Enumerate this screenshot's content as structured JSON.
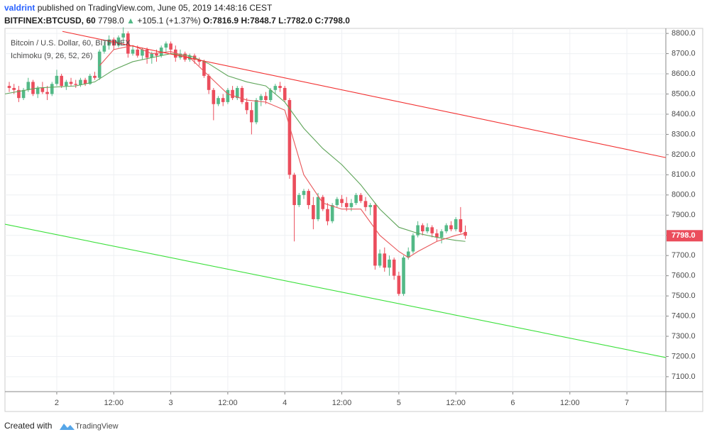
{
  "header": {
    "author": "valdrint",
    "published": "published on TradingView.com, June 05, 2019 14:48:16 CEST",
    "symbol": "BITFINEX:BTCUSD, 60",
    "last": "7798.0",
    "change": "+105.1 (+1.37%)",
    "ohlc": [
      "O:7816.9",
      "H:7848.7",
      "L:7782.0",
      "C:7798.0"
    ]
  },
  "chart_data": {
    "type": "candlestick",
    "legend": [
      "Bitcoin / U.S. Dollar, 60, BITFINEX",
      "Ichimoku (9, 26, 52, 26)"
    ],
    "up_color": "#53b987",
    "down_color": "#eb4d5c",
    "grid": true,
    "xlim": [
      -10.9,
      128.2
    ],
    "ylim": [
      7026,
      8825
    ],
    "xticks": [
      {
        "value": 0,
        "label": "2"
      },
      {
        "value": 12,
        "label": "12:00"
      },
      {
        "value": 24,
        "label": "3"
      },
      {
        "value": 36,
        "label": "12:00"
      },
      {
        "value": 48,
        "label": "4"
      },
      {
        "value": 60,
        "label": "12:00"
      },
      {
        "value": 72,
        "label": "5"
      },
      {
        "value": 84,
        "label": "12:00"
      },
      {
        "value": 96,
        "label": "6"
      },
      {
        "value": 108,
        "label": "12:00"
      },
      {
        "value": 120,
        "label": "7"
      }
    ],
    "yticks": [
      {
        "value": 7100,
        "label": "7100.0"
      },
      {
        "value": 7200,
        "label": "7200.0"
      },
      {
        "value": 7300,
        "label": "7300.0"
      },
      {
        "value": 7400,
        "label": "7400.0"
      },
      {
        "value": 7500,
        "label": "7500.0"
      },
      {
        "value": 7600,
        "label": "7600.0"
      },
      {
        "value": 7700,
        "label": "7700.0"
      },
      {
        "value": 7800,
        "label": "7800.0"
      },
      {
        "value": 7900,
        "label": "7900.0"
      },
      {
        "value": 8000,
        "label": "8000.0"
      },
      {
        "value": 8100,
        "label": "8100.0"
      },
      {
        "value": 8200,
        "label": "8200.0"
      },
      {
        "value": 8300,
        "label": "8300.0"
      },
      {
        "value": 8400,
        "label": "8400.0"
      },
      {
        "value": 8500,
        "label": "8500.0"
      },
      {
        "value": 8600,
        "label": "8600.0"
      },
      {
        "value": 8700,
        "label": "8700.0"
      },
      {
        "value": 8800,
        "label": "8800.0"
      }
    ],
    "x": [
      -10,
      -9,
      -8,
      -7,
      -6,
      -5,
      -4,
      -3,
      -2,
      -1,
      0,
      1,
      2,
      3,
      4,
      5,
      6,
      7,
      8,
      9,
      10,
      11,
      12,
      13,
      14,
      15,
      16,
      17,
      18,
      19,
      20,
      21,
      22,
      23,
      24,
      25,
      26,
      27,
      28,
      29,
      30,
      31,
      32,
      33,
      34,
      35,
      36,
      37,
      38,
      39,
      40,
      41,
      42,
      43,
      44,
      45,
      46,
      47,
      48,
      49,
      50,
      51,
      52,
      53,
      54,
      55,
      56,
      57,
      58,
      59,
      60,
      61,
      62,
      63,
      64,
      65,
      66,
      67,
      68,
      69,
      70,
      71,
      72,
      73,
      74,
      75,
      76,
      77,
      78,
      79,
      80,
      81,
      82,
      83,
      84,
      85,
      86
    ],
    "candles": [
      [
        8540,
        8560,
        8510,
        8530
      ],
      [
        8530,
        8550,
        8500,
        8520
      ],
      [
        8520,
        8540,
        8460,
        8480
      ],
      [
        8480,
        8530,
        8470,
        8520
      ],
      [
        8520,
        8580,
        8510,
        8560
      ],
      [
        8560,
        8570,
        8490,
        8500
      ],
      [
        8500,
        8540,
        8480,
        8530
      ],
      [
        8530,
        8560,
        8500,
        8510
      ],
      [
        8510,
        8540,
        8470,
        8500
      ],
      [
        8500,
        8560,
        8490,
        8550
      ],
      [
        8550,
        8620,
        8540,
        8590
      ],
      [
        8590,
        8600,
        8530,
        8540
      ],
      [
        8540,
        8570,
        8520,
        8560
      ],
      [
        8560,
        8580,
        8540,
        8550
      ],
      [
        8550,
        8570,
        8530,
        8545
      ],
      [
        8545,
        8580,
        8535,
        8570
      ],
      [
        8570,
        8580,
        8540,
        8550
      ],
      [
        8550,
        8600,
        8545,
        8590
      ],
      [
        8590,
        8610,
        8570,
        8580
      ],
      [
        8580,
        8720,
        8570,
        8710
      ],
      [
        8710,
        8760,
        8700,
        8740
      ],
      [
        8740,
        8790,
        8720,
        8770
      ],
      [
        8770,
        8780,
        8720,
        8740
      ],
      [
        8740,
        8790,
        8730,
        8780
      ],
      [
        8780,
        8830,
        8750,
        8800
      ],
      [
        8800,
        8810,
        8680,
        8700
      ],
      [
        8700,
        8740,
        8690,
        8720
      ],
      [
        8720,
        8740,
        8680,
        8690
      ],
      [
        8690,
        8730,
        8670,
        8720
      ],
      [
        8720,
        8730,
        8650,
        8680
      ],
      [
        8680,
        8710,
        8650,
        8700
      ],
      [
        8700,
        8720,
        8660,
        8690
      ],
      [
        8690,
        8740,
        8680,
        8730
      ],
      [
        8730,
        8760,
        8710,
        8750
      ],
      [
        8750,
        8760,
        8700,
        8720
      ],
      [
        8720,
        8740,
        8660,
        8680
      ],
      [
        8680,
        8720,
        8670,
        8700
      ],
      [
        8700,
        8710,
        8660,
        8670
      ],
      [
        8670,
        8700,
        8660,
        8690
      ],
      [
        8690,
        8700,
        8650,
        8670
      ],
      [
        8670,
        8680,
        8640,
        8660
      ],
      [
        8660,
        8670,
        8580,
        8590
      ],
      [
        8590,
        8600,
        8500,
        8520
      ],
      [
        8520,
        8530,
        8370,
        8450
      ],
      [
        8450,
        8490,
        8440,
        8480
      ],
      [
        8480,
        8500,
        8440,
        8460
      ],
      [
        8460,
        8530,
        8450,
        8520
      ],
      [
        8520,
        8540,
        8470,
        8480
      ],
      [
        8480,
        8540,
        8470,
        8530
      ],
      [
        8530,
        8540,
        8450,
        8460
      ],
      [
        8460,
        8480,
        8400,
        8420
      ],
      [
        8420,
        8460,
        8300,
        8360
      ],
      [
        8360,
        8480,
        8350,
        8470
      ],
      [
        8470,
        8500,
        8440,
        8490
      ],
      [
        8490,
        8510,
        8450,
        8470
      ],
      [
        8470,
        8530,
        8460,
        8520
      ],
      [
        8520,
        8550,
        8500,
        8540
      ],
      [
        8540,
        8560,
        8510,
        8530
      ],
      [
        8530,
        8540,
        8460,
        8470
      ],
      [
        8470,
        8480,
        8080,
        8100
      ],
      [
        8100,
        8110,
        7770,
        7950
      ],
      [
        7950,
        8010,
        7940,
        8000
      ],
      [
        8000,
        8030,
        7980,
        8020
      ],
      [
        8020,
        8030,
        7930,
        7950
      ],
      [
        7950,
        7990,
        7830,
        7880
      ],
      [
        7880,
        8010,
        7870,
        7990
      ],
      [
        7990,
        8000,
        7920,
        7930
      ],
      [
        7930,
        7960,
        7850,
        7870
      ],
      [
        7870,
        7960,
        7860,
        7950
      ],
      [
        7950,
        7990,
        7940,
        7980
      ],
      [
        7980,
        8000,
        7940,
        7960
      ],
      [
        7960,
        7990,
        7920,
        7940
      ],
      [
        7940,
        7980,
        7920,
        7960
      ],
      [
        7960,
        8010,
        7950,
        8000
      ],
      [
        8000,
        8010,
        7960,
        7970
      ],
      [
        7970,
        7990,
        7920,
        7940
      ],
      [
        7940,
        7960,
        7900,
        7950
      ],
      [
        7950,
        7960,
        7630,
        7650
      ],
      [
        7650,
        7730,
        7640,
        7710
      ],
      [
        7710,
        7740,
        7620,
        7640
      ],
      [
        7640,
        7700,
        7600,
        7680
      ],
      [
        7680,
        7690,
        7580,
        7600
      ],
      [
        7600,
        7620,
        7500,
        7510
      ],
      [
        7510,
        7700,
        7500,
        7690
      ],
      [
        7690,
        7740,
        7680,
        7720
      ],
      [
        7720,
        7810,
        7710,
        7800
      ],
      [
        7800,
        7870,
        7790,
        7850
      ],
      [
        7850,
        7860,
        7800,
        7820
      ],
      [
        7820,
        7860,
        7810,
        7840
      ],
      [
        7840,
        7850,
        7790,
        7810
      ],
      [
        7810,
        7830,
        7770,
        7790
      ],
      [
        7790,
        7830,
        7760,
        7820
      ],
      [
        7820,
        7860,
        7810,
        7850
      ],
      [
        7850,
        7870,
        7820,
        7830
      ],
      [
        7830,
        7890,
        7820,
        7880
      ],
      [
        7880,
        7940,
        7810,
        7816.9
      ],
      [
        7816.9,
        7848.7,
        7782,
        7798
      ]
    ],
    "lines": [
      {
        "color": "#5fa55a",
        "x": [
          -11,
          -4,
          4,
          8,
          12,
          16,
          20,
          24,
          28,
          32,
          36,
          40,
          44,
          48,
          52,
          56,
          60,
          64,
          68,
          72,
          76,
          80,
          84,
          86
        ],
        "values": [
          8500,
          8530,
          8540,
          8560,
          8620,
          8660,
          8680,
          8700,
          8690,
          8650,
          8590,
          8560,
          8540,
          8460,
          8330,
          8230,
          8150,
          8050,
          7930,
          7840,
          7810,
          7790,
          7775,
          7770
        ]
      },
      {
        "color": "#e8575a",
        "x": [
          9,
          12,
          16,
          20,
          24,
          28,
          32,
          36,
          40,
          44,
          48,
          52,
          56,
          60,
          64,
          68,
          72,
          74,
          76,
          80,
          84,
          86
        ],
        "values": [
          8640,
          8720,
          8740,
          8700,
          8710,
          8680,
          8590,
          8500,
          8470,
          8460,
          8420,
          8100,
          7960,
          7930,
          7930,
          7800,
          7720,
          7690,
          7720,
          7770,
          7800,
          7810
        ]
      },
      {
        "color": "#f23030",
        "x": [
          1.2,
          128.2
        ],
        "values": [
          8810,
          8185
        ]
      },
      {
        "color": "#3ae03a",
        "x": [
          -10.9,
          128.2
        ],
        "values": [
          7855,
          7195
        ]
      }
    ],
    "price_label": {
      "value": 7798,
      "label": "7798.0"
    },
    "footer": "Created with",
    "brand": "TradingView"
  }
}
